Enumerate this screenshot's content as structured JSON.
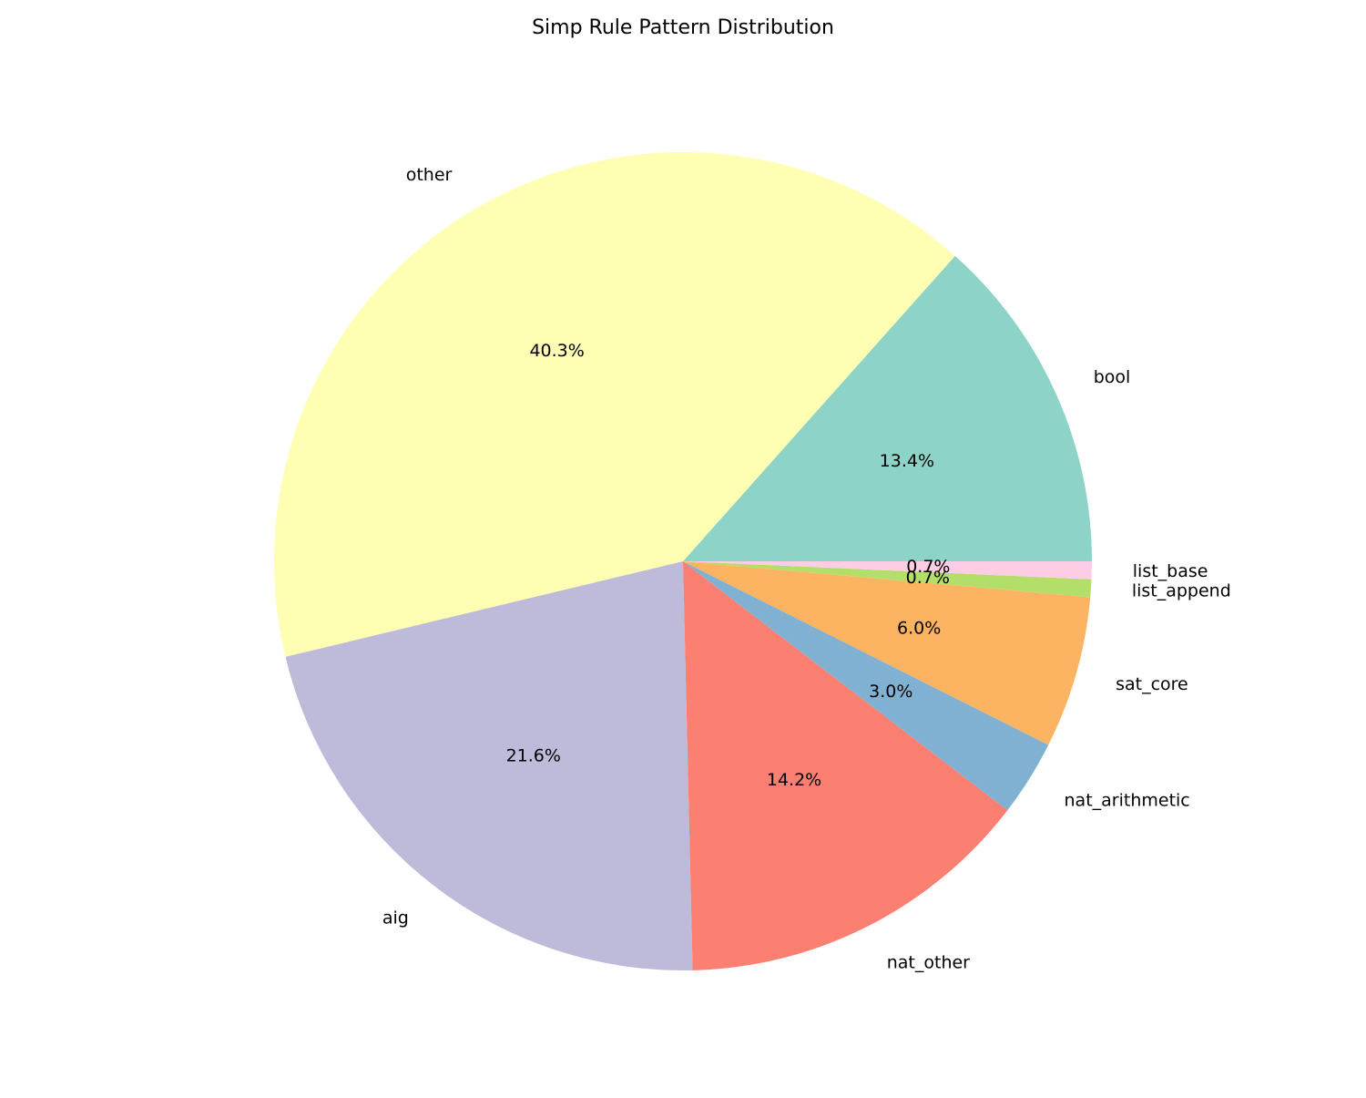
{
  "chart_data": {
    "type": "pie",
    "title": "Simp Rule Pattern Distribution",
    "slices": [
      {
        "label": "bool",
        "value": 13.4,
        "pct_label": "13.4%",
        "color": "#8dd3c7"
      },
      {
        "label": "other",
        "value": 40.3,
        "pct_label": "40.3%",
        "color": "#ffffb3"
      },
      {
        "label": "aig",
        "value": 21.6,
        "pct_label": "21.6%",
        "color": "#bebada"
      },
      {
        "label": "nat_other",
        "value": 14.2,
        "pct_label": "14.2%",
        "color": "#fb8072"
      },
      {
        "label": "nat_arithmetic",
        "value": 3.0,
        "pct_label": "3.0%",
        "color": "#80b1d3"
      },
      {
        "label": "sat_core",
        "value": 6.0,
        "pct_label": "6.0%",
        "color": "#fdb462"
      },
      {
        "label": "list_append",
        "value": 0.7,
        "pct_label": "0.7%",
        "color": "#b3de69"
      },
      {
        "label": "list_base",
        "value": 0.7,
        "pct_label": "0.7%",
        "color": "#fccde5"
      }
    ],
    "start_angle_deg": 0,
    "direction": "counterclockwise",
    "legend": "none"
  }
}
